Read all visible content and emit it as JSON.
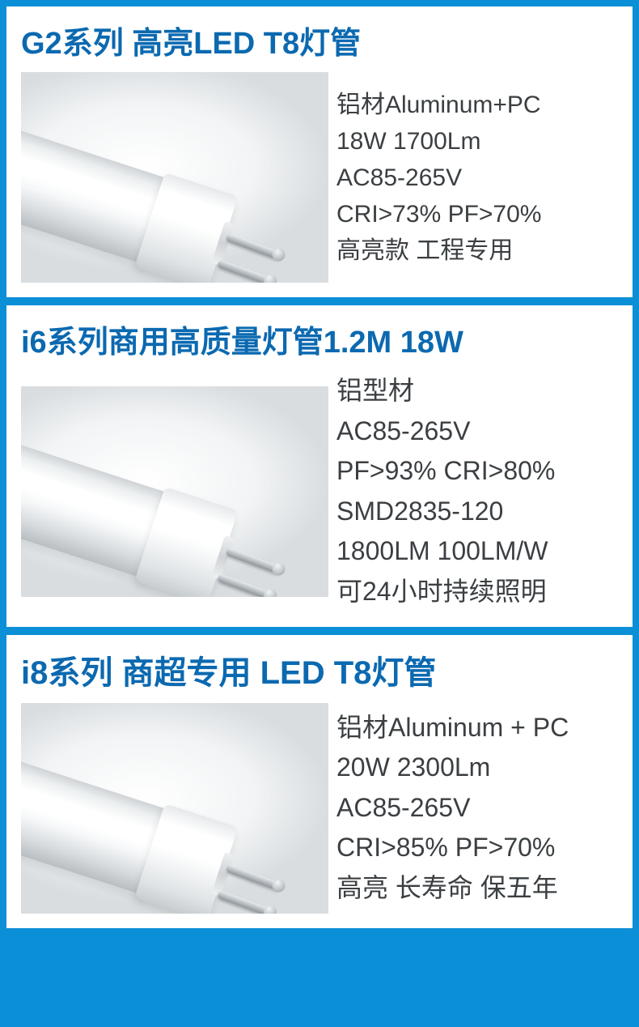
{
  "colors": {
    "page_bg": "#0b8fd6",
    "card_bg": "#ffffff",
    "title_color": "#0b69b0",
    "spec_color": "#3b3f42"
  },
  "cards": [
    {
      "title": "G2系列 高亮LED T8灯管",
      "specs": [
        "铝材Aluminum+PC",
        "18W 1700Lm",
        "AC85-265V",
        "CRI>73% PF>70%",
        "高亮款 工程专用"
      ]
    },
    {
      "title": "i6系列商用高质量灯管1.2M 18W",
      "specs": [
        "铝型材",
        "AC85-265V",
        "PF>93%  CRI>80%",
        "SMD2835-120",
        "1800LM  100LM/W",
        "可24小时持续照明"
      ]
    },
    {
      "title": "i8系列 商超专用 LED T8灯管",
      "specs": [
        "铝材Aluminum + PC",
        "20W 2300Lm",
        "AC85-265V",
        "CRI>85% PF>70%",
        "高亮 长寿命 保五年"
      ]
    }
  ]
}
